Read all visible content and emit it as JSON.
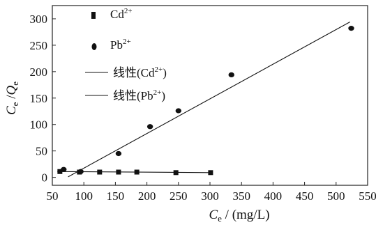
{
  "chart_data": {
    "type": "scatter",
    "xlabel": "Ce / (mg/L)",
    "ylabel": "Ce /Qe",
    "xlim": [
      50,
      550
    ],
    "ylim": [
      -15,
      325
    ],
    "x_ticks": [
      50,
      100,
      150,
      200,
      250,
      300,
      350,
      400,
      450,
      500,
      550
    ],
    "y_ticks": [
      0,
      50,
      100,
      150,
      200,
      250,
      300
    ],
    "grid": false,
    "legend_position": "top-left",
    "series": [
      {
        "name": "Cd2+",
        "marker": "square",
        "points": [
          [
            62,
            11
          ],
          [
            93,
            10
          ],
          [
            125,
            10
          ],
          [
            155,
            10
          ],
          [
            184,
            10
          ],
          [
            246,
            9
          ],
          [
            301,
            9
          ]
        ]
      },
      {
        "name": "Pb2+",
        "marker": "ellipse",
        "points": [
          [
            68,
            15
          ],
          [
            95,
            11
          ],
          [
            155,
            45
          ],
          [
            205,
            96
          ],
          [
            250,
            126
          ],
          [
            334,
            194
          ],
          [
            524,
            282
          ]
        ]
      },
      {
        "name": "线性(Cd2+)",
        "type": "line",
        "points": [
          [
            58,
            11
          ],
          [
            300,
            9
          ]
        ]
      },
      {
        "name": "线性(Pb2+)",
        "type": "line",
        "points": [
          [
            75,
            1
          ],
          [
            522,
            294
          ]
        ]
      }
    ],
    "legend": [
      {
        "symbol": "square",
        "label": "Cd",
        "sup": "2+"
      },
      {
        "symbol": "ellipse",
        "label": "Pb",
        "sup": "2+"
      },
      {
        "symbol": "line",
        "label": "线性(Cd",
        "sup": "2+",
        "suffix": ")"
      },
      {
        "symbol": "line",
        "label": "线性(Pb",
        "sup": "2+",
        "suffix": ")"
      }
    ]
  }
}
